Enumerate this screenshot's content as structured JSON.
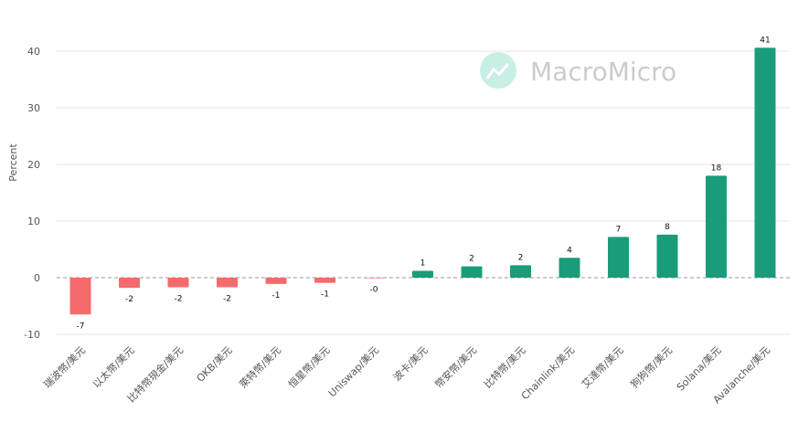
{
  "watermark": {
    "text": "MacroMicro"
  },
  "chart_data": {
    "type": "bar",
    "ylabel": "Percent",
    "ylim": [
      -10,
      42
    ],
    "yticks": [
      -10,
      0,
      10,
      20,
      30,
      40
    ],
    "grid": true,
    "categories": [
      "瑞波幣/美元",
      "以太幣/美元",
      "比特幣現金/美元",
      "OKB/美元",
      "萊特幣/美元",
      "恒星幣/美元",
      "Uniswap/美元",
      "波卡/美元",
      "幣安幣/美元",
      "比特幣/美元",
      "Chainlink/美元",
      "艾達幣/美元",
      "狗狗幣/美元",
      "Solana/美元",
      "Avalanche/美元"
    ],
    "values": [
      -6.5,
      -1.8,
      -1.7,
      -1.7,
      -1.1,
      -0.9,
      -0.1,
      1.2,
      2.0,
      2.2,
      3.5,
      7.2,
      7.6,
      18.0,
      40.6
    ],
    "labels": [
      "-7",
      "-2",
      "-2",
      "-2",
      "-1",
      "-1",
      "-0",
      "1",
      "2",
      "2",
      "4",
      "7",
      "8",
      "18",
      "41"
    ],
    "colors": {
      "positive": "#1a9c7b",
      "negative": "#f56b6b",
      "grid": "#e6e6e6",
      "zero": "#999999"
    }
  }
}
